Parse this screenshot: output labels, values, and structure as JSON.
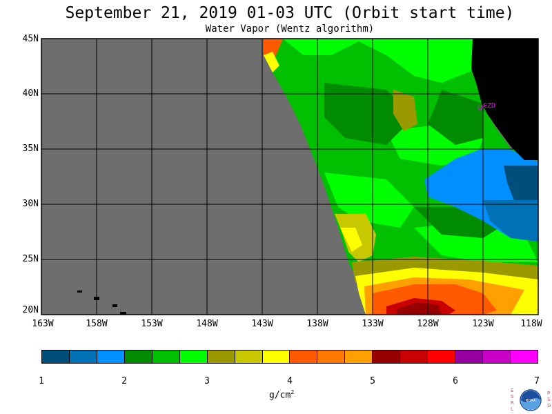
{
  "header": {
    "title": "September 21, 2019  01-03 UTC  (Orbit start time)",
    "subtitle": "Water Vapor (Wentz algorithm)"
  },
  "axes": {
    "lat_labels": [
      "45N",
      "40N",
      "35N",
      "30N",
      "25N",
      "20N"
    ],
    "lon_labels": [
      "163W",
      "158W",
      "153W",
      "148W",
      "143W",
      "138W",
      "133W",
      "128W",
      "123W",
      "118W"
    ]
  },
  "map": {
    "station_label": "CZD",
    "no_data_color": "#6e6e6e",
    "land_color": "#000000"
  },
  "colorbar": {
    "ticks": [
      "1",
      "2",
      "3",
      "4",
      "5",
      "6",
      "7"
    ],
    "unit": "g/cm",
    "unit_sup": "2",
    "colors": [
      "#004f7a",
      "#0072b5",
      "#008fff",
      "#008c00",
      "#00c000",
      "#00ff00",
      "#9a9a00",
      "#c8c800",
      "#ffff00",
      "#ff5a00",
      "#ff7800",
      "#ffa000",
      "#960000",
      "#c80000",
      "#ff0000",
      "#9600a0",
      "#c800c8",
      "#ff00ff"
    ]
  },
  "logo": {
    "left_letters": "ESRL",
    "right_letters": "PSD",
    "name": "NOAA"
  }
}
